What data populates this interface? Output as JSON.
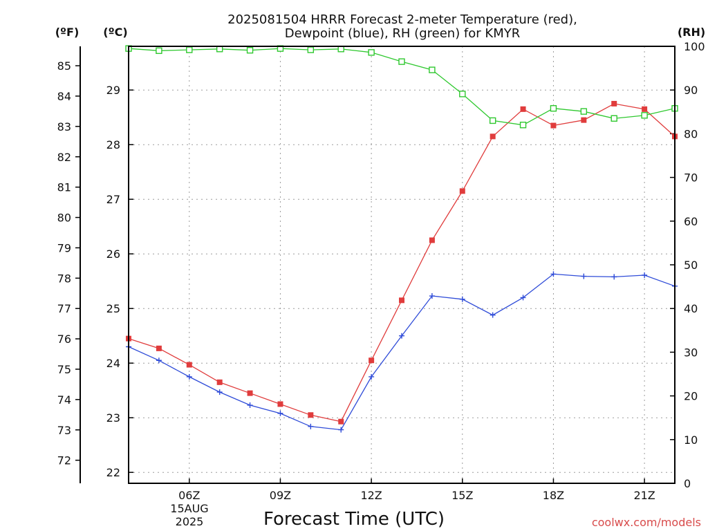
{
  "chart_data": {
    "type": "line",
    "title_lines": [
      "2025081504 HRRR Forecast 2-meter Temperature (red),",
      "Dewpoint (blue), RH (green) for KMYR"
    ],
    "xlabel": "Forecast Time (UTC)",
    "date_lines": [
      "15AUG",
      "2025"
    ],
    "credit": "coolwx.com/models",
    "unit_labels": {
      "fahrenheit": "(ºF)",
      "celsius": "(ºC)",
      "rh": "(RH)"
    },
    "x": [
      "04Z",
      "05Z",
      "06Z",
      "07Z",
      "08Z",
      "09Z",
      "10Z",
      "11Z",
      "12Z",
      "13Z",
      "14Z",
      "15Z",
      "16Z",
      "17Z",
      "18Z",
      "19Z",
      "20Z",
      "21Z",
      "22Z"
    ],
    "x_hours": [
      4,
      5,
      6,
      7,
      8,
      9,
      10,
      11,
      12,
      13,
      14,
      15,
      16,
      17,
      18,
      19,
      20,
      21,
      22
    ],
    "x_ticks": [
      {
        "hour": 6,
        "label": "06Z"
      },
      {
        "hour": 9,
        "label": "09Z"
      },
      {
        "hour": 12,
        "label": "12Z"
      },
      {
        "hour": 15,
        "label": "15Z"
      },
      {
        "hour": 18,
        "label": "18Z"
      },
      {
        "hour": 21,
        "label": "21Z"
      }
    ],
    "xlim_hours": [
      4,
      22
    ],
    "celsius_axis": {
      "lim": [
        21.8,
        29.8
      ],
      "ticks": [
        22,
        23,
        24,
        25,
        26,
        27,
        28,
        29
      ]
    },
    "fahrenheit_ticks": [
      72,
      73,
      74,
      75,
      76,
      77,
      78,
      79,
      80,
      81,
      82,
      83,
      84,
      85
    ],
    "rh_axis": {
      "lim": [
        0,
        100
      ],
      "ticks": [
        0,
        10,
        20,
        30,
        40,
        50,
        60,
        70,
        80,
        90,
        100
      ]
    },
    "grid": true,
    "series": [
      {
        "key": "temperature",
        "axis": "celsius",
        "color": "#e03c3c",
        "marker": "filled-square",
        "values": [
          24.45,
          24.27,
          23.97,
          23.65,
          23.45,
          23.25,
          23.05,
          22.93,
          24.05,
          25.15,
          26.25,
          27.15,
          28.15,
          28.65,
          28.35,
          28.45,
          28.75,
          28.65,
          28.15
        ]
      },
      {
        "key": "dewpoint",
        "axis": "celsius",
        "color": "#2e4bd8",
        "marker": "plus",
        "values": [
          24.3,
          24.05,
          23.75,
          23.47,
          23.23,
          23.08,
          22.84,
          22.78,
          23.75,
          24.5,
          25.23,
          25.17,
          24.88,
          25.2,
          25.63,
          25.59,
          25.58,
          25.61,
          25.41
        ]
      },
      {
        "key": "rh",
        "axis": "rh",
        "color": "#2ec82e",
        "marker": "open-square",
        "values": [
          99.5,
          99.0,
          99.2,
          99.4,
          99.1,
          99.5,
          99.2,
          99.4,
          98.6,
          96.5,
          94.6,
          89.1,
          83.0,
          82.0,
          85.8,
          85.1,
          83.5,
          84.2,
          85.8
        ]
      }
    ]
  }
}
